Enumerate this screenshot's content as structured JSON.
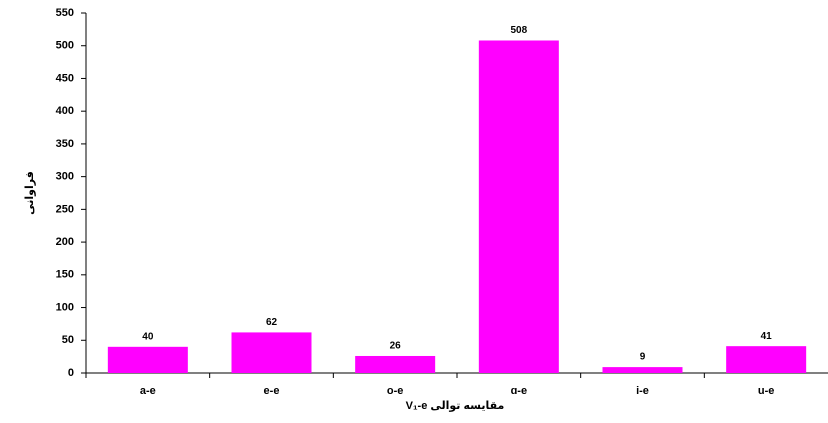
{
  "chart_data": {
    "type": "bar",
    "x_label": "مقایسه توالی V₁-e",
    "y_label": "فراوانی",
    "categories": [
      "a-e",
      "e-e",
      "o-e",
      "ɑ-e",
      "i-e",
      "u-e"
    ],
    "values": [
      40,
      62,
      26,
      508,
      9,
      41
    ],
    "color": "#ff00ff",
    "ylim": [
      0,
      550
    ],
    "yticks": [
      0,
      50,
      100,
      150,
      200,
      250,
      300,
      350,
      400,
      450,
      500,
      550
    ],
    "grid": false
  }
}
